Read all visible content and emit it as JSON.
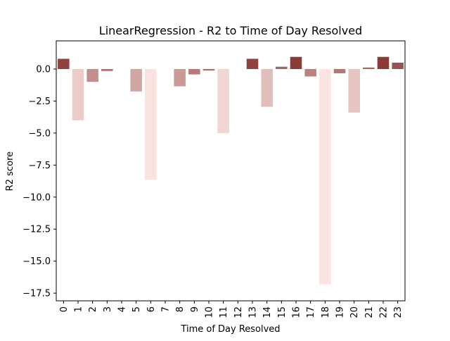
{
  "chart_data": {
    "type": "bar",
    "title": "LinearRegression - R2 to Time of Day Resolved",
    "xlabel": "Time of Day Resolved",
    "ylabel": "R2 score",
    "categories": [
      "0",
      "1",
      "2",
      "3",
      "4",
      "5",
      "6",
      "7",
      "8",
      "9",
      "10",
      "11",
      "12",
      "13",
      "14",
      "15",
      "16",
      "17",
      "18",
      "19",
      "20",
      "21",
      "22",
      "23"
    ],
    "values": [
      0.8,
      -4.0,
      -1.0,
      -0.15,
      0.0,
      -1.75,
      -8.65,
      0.0,
      -1.35,
      -0.42,
      -0.12,
      -5.0,
      0.0,
      0.8,
      -2.95,
      0.18,
      0.95,
      -0.58,
      -16.8,
      -0.33,
      -3.4,
      0.12,
      0.95,
      0.5
    ],
    "ylim": [
      -18.1,
      2.2
    ],
    "yticks": [
      0.0,
      -2.5,
      -5.0,
      -7.5,
      -10.0,
      -12.5,
      -15.0,
      -17.5
    ],
    "ytick_labels": [
      "0.0",
      "−2.5",
      "−5.0",
      "−7.5",
      "−10.0",
      "−12.5",
      "−15.0",
      "−17.5"
    ],
    "colors": {
      "high": "#8b3a36",
      "low": "#fbe4e0"
    },
    "grid": false,
    "legend": "none"
  }
}
